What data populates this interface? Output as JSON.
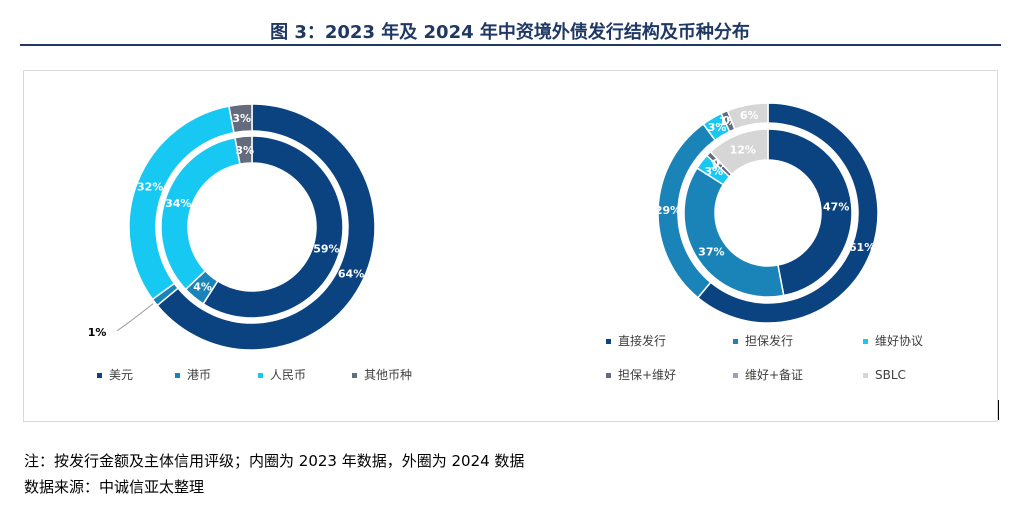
{
  "title": "图 3：2023 年及 2024 年中资境外债发行结构及币种分布",
  "note": "注：按发行金额及主体信用评级；内圈为 2023 年数据，外圈为 2024 数据",
  "source": "数据来源：中诚信亚太整理",
  "colors": {
    "title": "#1f3864",
    "navy": "#0b4380",
    "teal": "#1a84b8",
    "cyan": "#17c8f3",
    "slate": "#636b7c",
    "steel": "#97a4b3",
    "light_gray": "#d6d6d6"
  },
  "chart_data": [
    {
      "type": "donut",
      "series": [
        {
          "name": "内圈 (2023)",
          "values": [
            59,
            4,
            34,
            3
          ],
          "labels": [
            "59%",
            "4%",
            "34%",
            "3%"
          ]
        },
        {
          "name": "外圈 (2024)",
          "values": [
            64,
            1,
            32,
            3
          ],
          "labels": [
            "64%",
            "1%",
            "32%",
            "3%"
          ]
        }
      ],
      "categories": [
        "美元",
        "港币",
        "人民币",
        "其他币种"
      ],
      "colors": [
        "#0b4380",
        "#1a84b8",
        "#17c8f3",
        "#636b7c"
      ],
      "legend": "bottom"
    },
    {
      "type": "donut",
      "series": [
        {
          "name": "内圈 (2023)",
          "values": [
            47,
            37,
            3,
            1,
            0,
            12
          ],
          "labels": [
            "47%",
            "37%",
            "3%",
            "1%",
            "0%",
            "12%"
          ]
        },
        {
          "name": "外圈 (2024)",
          "values": [
            61,
            29,
            3,
            1,
            0,
            6
          ],
          "labels": [
            "61%",
            "29%",
            "3%",
            "1%",
            "0%",
            "6%"
          ]
        }
      ],
      "categories": [
        "直接发行",
        "担保发行",
        "维好协议",
        "担保+维好",
        "维好+备证",
        "SBLC"
      ],
      "colors": [
        "#0b4380",
        "#1a84b8",
        "#17c8f3",
        "#636b7c",
        "#97a4b3",
        "#d6d6d6"
      ],
      "legend": "bottom"
    }
  ]
}
